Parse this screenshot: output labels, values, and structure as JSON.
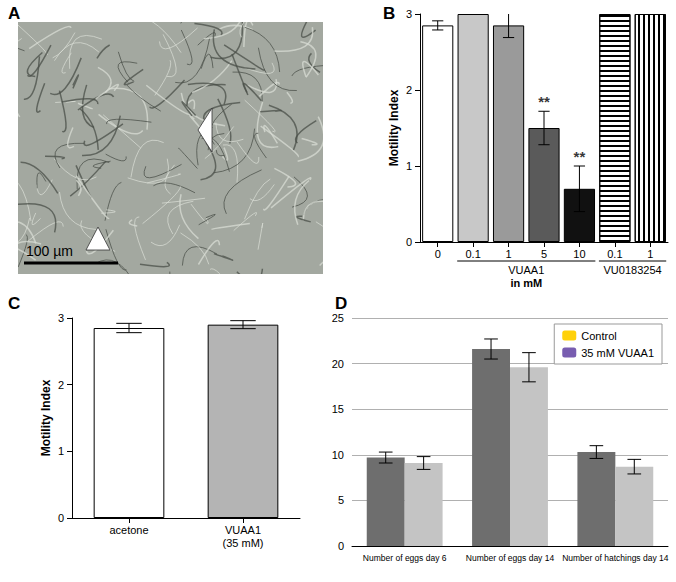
{
  "image_panel": {
    "title": "A",
    "scale_bar": "100 µm"
  },
  "chart_data": [
    {
      "title": "B",
      "type": "bar",
      "categories": [
        "0",
        "0.1",
        "1",
        "5",
        "10",
        "0.1",
        "1"
      ],
      "values": [
        2.85,
        3,
        2.85,
        1.5,
        0.7,
        3,
        3
      ],
      "errors": [
        0.06,
        0,
        0.16,
        0.22,
        0.3,
        0,
        0
      ],
      "colors": [
        "#ffffff",
        "#c8c8c8",
        "#9a9a9a",
        "#5a5a5a",
        "#111111",
        "#ffffff",
        "#ffffff"
      ],
      "groups": [
        {
          "label": "VUAA1",
          "start": 1,
          "end": 4
        },
        {
          "label": "VU0183254",
          "start": 5,
          "end": 6
        }
      ],
      "xlabel": "in mM",
      "ylabel": "Motility Index",
      "annotations": [
        {
          "index": 3,
          "text": "**"
        },
        {
          "index": 4,
          "text": "**"
        }
      ],
      "ylim": [
        0,
        3
      ],
      "yticks": [
        0,
        1,
        2,
        3
      ],
      "grid": false
    },
    {
      "title": "C",
      "type": "bar",
      "categories": [
        "acetone",
        "VUAA1\n(35 mM)"
      ],
      "values": [
        2.85,
        2.9
      ],
      "errors": [
        0.07,
        0.06
      ],
      "colors": [
        "#ffffff",
        "#b4b4b4"
      ],
      "ylabel": "Motility Index",
      "ylim": [
        0,
        3
      ],
      "yticks": [
        0,
        1,
        2,
        3
      ],
      "grid": false
    },
    {
      "title": "D",
      "type": "bar",
      "categories": [
        "Number of eggs day 6",
        "Number of eggs day 14",
        "Number of hatchings day 14"
      ],
      "series": [
        {
          "name": "Control",
          "color": "#6e6e6e",
          "values": [
            9.7,
            21.6,
            10.3
          ],
          "errors": [
            0.6,
            1.1,
            0.7
          ]
        },
        {
          "name": "35 mM VUAA1",
          "color": "#c4c4c4",
          "values": [
            9.1,
            19.6,
            8.7
          ],
          "errors": [
            0.7,
            1.6,
            0.8
          ]
        }
      ],
      "ylim": [
        0,
        25
      ],
      "yticks": [
        0,
        5,
        10,
        15,
        20,
        25
      ],
      "grid": true,
      "legend": "upper right"
    }
  ]
}
